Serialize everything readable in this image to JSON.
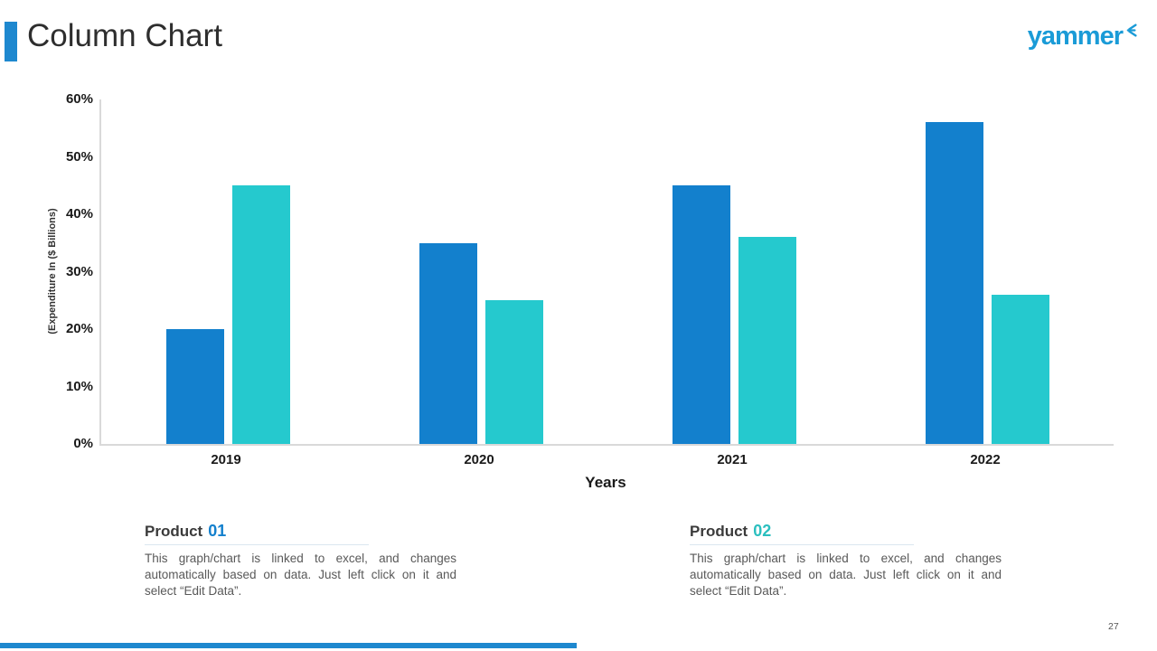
{
  "header": {
    "title": "Column Chart",
    "logo_text": "yammer"
  },
  "slide": {
    "accent_color": "#1E88CF",
    "footer_bar_color": "#1E88CF",
    "logo_color": "#1A9BD7",
    "page_number": "27"
  },
  "chart_data": {
    "type": "bar",
    "title": "",
    "categories": [
      "2019",
      "2020",
      "2021",
      "2022"
    ],
    "series": [
      {
        "name": "Product 01",
        "color": "#1380CD",
        "values": [
          20,
          35,
          45,
          56
        ]
      },
      {
        "name": "Product 02",
        "color": "#25C9CE",
        "values": [
          45,
          25,
          36,
          26
        ]
      }
    ],
    "xlabel": "Years",
    "ylabel": "(Expenditure In ($ Billions)",
    "ylim": [
      0,
      60
    ],
    "ytick_step": 10,
    "ytick_labels": [
      "60%",
      "50%",
      "40%",
      "30%",
      "20%",
      "10%",
      "0%"
    ],
    "grid": false,
    "legend": "none"
  },
  "notes": [
    {
      "heading": "Product",
      "number": "01",
      "number_color": "#1380CD",
      "body": "This graph/chart is linked to excel, and changes automatically based on data. Just left click on it and select “Edit Data”."
    },
    {
      "heading": "Product",
      "number": "02",
      "number_color": "#2BBFBF",
      "body": "This graph/chart is linked to excel, and changes automatically based on data. Just left click on it and select “Edit Data”."
    }
  ]
}
